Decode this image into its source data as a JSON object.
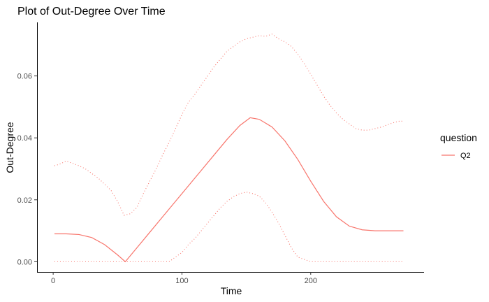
{
  "chart_data": {
    "type": "line",
    "title": "Plot of Out-Degree Over Time",
    "xlabel": "Time",
    "ylabel": "Out-Degree",
    "xlim": [
      -12,
      288
    ],
    "ylim": [
      -0.0033,
      0.0773
    ],
    "x_ticks": [
      0,
      100,
      200
    ],
    "y_ticks": [
      0.0,
      0.02,
      0.04,
      0.06
    ],
    "x_tick_labels": [
      "0",
      "100",
      "200"
    ],
    "y_tick_labels": [
      "0.00",
      "0.02",
      "0.04",
      "0.06"
    ],
    "grid": false,
    "legend": {
      "title": "question",
      "position": "right",
      "entries": [
        "Q2"
      ]
    },
    "series": [
      {
        "name": "Q2 (fitted)",
        "legend_label": "Q2",
        "style": "solid",
        "color": "#F8766D",
        "x": [
          1,
          10,
          20,
          30,
          40,
          50,
          56,
          65,
          75,
          85,
          95,
          105,
          115,
          125,
          135,
          145,
          153,
          160,
          170,
          180,
          190,
          200,
          210,
          220,
          230,
          240,
          250,
          260,
          272
        ],
        "y": [
          0.009,
          0.009,
          0.0088,
          0.0078,
          0.0055,
          0.0022,
          0.0,
          0.0045,
          0.0095,
          0.0145,
          0.0195,
          0.0245,
          0.0295,
          0.0345,
          0.0395,
          0.044,
          0.0465,
          0.046,
          0.0435,
          0.039,
          0.033,
          0.026,
          0.0195,
          0.0145,
          0.0115,
          0.0103,
          0.01,
          0.01,
          0.01
        ]
      },
      {
        "name": "Q2 upper bound",
        "style": "dotted",
        "color": "#F8766D",
        "x": [
          1,
          5,
          10,
          15,
          20,
          25,
          30,
          35,
          40,
          45,
          50,
          55,
          60,
          65,
          70,
          75,
          80,
          85,
          90,
          95,
          100,
          105,
          110,
          115,
          120,
          125,
          130,
          135,
          140,
          145,
          150,
          155,
          160,
          165,
          170,
          175,
          180,
          185,
          190,
          195,
          200,
          205,
          210,
          215,
          220,
          225,
          230,
          235,
          240,
          245,
          250,
          255,
          260,
          265,
          270,
          272
        ],
        "y": [
          0.031,
          0.0315,
          0.0325,
          0.0318,
          0.031,
          0.03,
          0.0285,
          0.027,
          0.025,
          0.023,
          0.0195,
          0.015,
          0.0155,
          0.0175,
          0.022,
          0.026,
          0.03,
          0.0345,
          0.0385,
          0.043,
          0.0475,
          0.0515,
          0.054,
          0.057,
          0.06,
          0.063,
          0.0655,
          0.068,
          0.0695,
          0.071,
          0.072,
          0.0725,
          0.073,
          0.0728,
          0.0735,
          0.072,
          0.071,
          0.0695,
          0.067,
          0.064,
          0.0605,
          0.057,
          0.0535,
          0.0505,
          0.048,
          0.046,
          0.0445,
          0.043,
          0.0425,
          0.0425,
          0.043,
          0.0435,
          0.0443,
          0.045,
          0.0455,
          0.0452
        ]
      },
      {
        "name": "Q2 lower bound",
        "style": "dotted",
        "color": "#F8766D",
        "x": [
          1,
          20,
          40,
          60,
          80,
          90,
          95,
          100,
          105,
          110,
          115,
          120,
          125,
          130,
          135,
          140,
          145,
          150,
          155,
          160,
          165,
          170,
          175,
          180,
          185,
          190,
          200,
          220,
          240,
          260,
          272
        ],
        "y": [
          0.0,
          0.0,
          0.0,
          0.0,
          0.0,
          0.0,
          0.0015,
          0.003,
          0.0055,
          0.0075,
          0.01,
          0.0125,
          0.015,
          0.0175,
          0.0195,
          0.021,
          0.022,
          0.0225,
          0.022,
          0.0212,
          0.019,
          0.016,
          0.0125,
          0.0085,
          0.0045,
          0.0015,
          0.0,
          0.0,
          0.0,
          0.0,
          0.0
        ]
      }
    ]
  }
}
